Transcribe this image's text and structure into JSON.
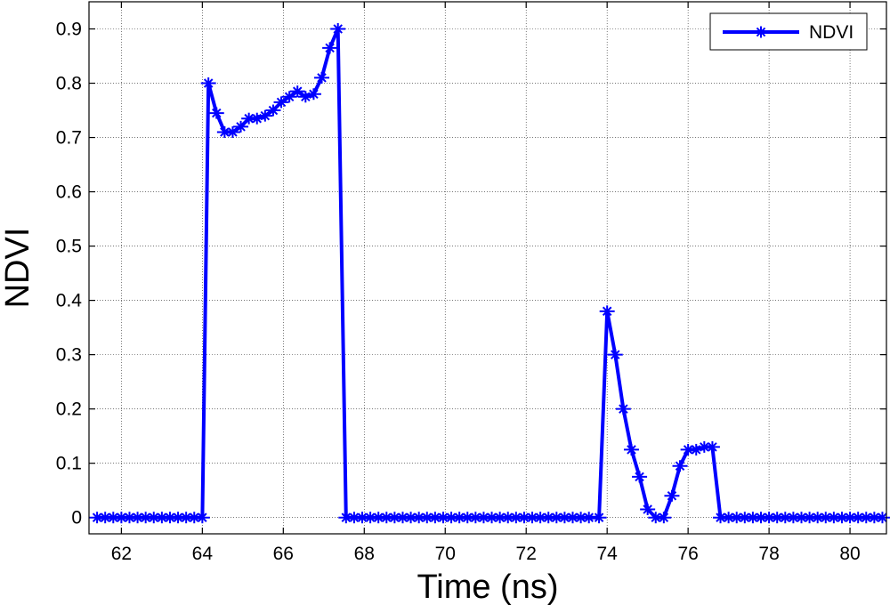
{
  "chart_data": {
    "type": "line",
    "xlabel": "Time (ns)",
    "ylabel": "NDVI",
    "xlim": [
      61.2,
      80.9
    ],
    "ylim": [
      -0.03,
      0.95
    ],
    "xticks": [
      62,
      64,
      66,
      68,
      70,
      72,
      74,
      76,
      78,
      80
    ],
    "xtick_labels": [
      "62",
      "64",
      "66",
      "68",
      "70",
      "72",
      "74",
      "76",
      "78",
      "80"
    ],
    "yticks": [
      0,
      0.1,
      0.2,
      0.3,
      0.4,
      0.5,
      0.6,
      0.7,
      0.8,
      0.9
    ],
    "ytick_labels": [
      "0",
      "0.1",
      "0.2",
      "0.3",
      "0.4",
      "0.5",
      "0.6",
      "0.7",
      "0.8",
      "0.9"
    ],
    "grid": true,
    "legend_position": "top-right",
    "series": [
      {
        "name": "NDVI",
        "color": "#0000ff",
        "marker": "star",
        "x": [
          61.4,
          61.6,
          61.8,
          62.0,
          62.2,
          62.4,
          62.6,
          62.8,
          63.0,
          63.2,
          63.4,
          63.6,
          63.8,
          64.0,
          64.15,
          64.35,
          64.55,
          64.75,
          64.95,
          65.15,
          65.35,
          65.55,
          65.75,
          65.95,
          66.15,
          66.35,
          66.55,
          66.75,
          66.95,
          67.15,
          67.35,
          67.55,
          67.75,
          67.95,
          68.15,
          68.35,
          68.55,
          68.75,
          68.95,
          69.15,
          69.35,
          69.55,
          69.75,
          69.95,
          70.15,
          70.35,
          70.55,
          70.75,
          70.95,
          71.15,
          71.35,
          71.55,
          71.75,
          71.95,
          72.15,
          72.35,
          72.55,
          72.75,
          72.95,
          73.15,
          73.35,
          73.55,
          73.8,
          74.0,
          74.2,
          74.4,
          74.6,
          74.8,
          75.0,
          75.2,
          75.4,
          75.6,
          75.8,
          76.0,
          76.2,
          76.4,
          76.6,
          76.8,
          77.0,
          77.2,
          77.4,
          77.6,
          77.8,
          78.0,
          78.2,
          78.4,
          78.6,
          78.8,
          79.0,
          79.2,
          79.4,
          79.6,
          79.8,
          80.0,
          80.2,
          80.4,
          80.6,
          80.8
        ],
        "y": [
          0,
          0,
          0,
          0,
          0,
          0,
          0,
          0,
          0,
          0,
          0,
          0,
          0,
          0,
          0.8,
          0.745,
          0.71,
          0.71,
          0.72,
          0.735,
          0.735,
          0.74,
          0.75,
          0.765,
          0.775,
          0.785,
          0.775,
          0.78,
          0.81,
          0.865,
          0.9,
          0,
          0,
          0,
          0,
          0,
          0,
          0,
          0,
          0,
          0,
          0,
          0,
          0,
          0,
          0,
          0,
          0,
          0,
          0,
          0,
          0,
          0,
          0,
          0,
          0,
          0,
          0,
          0,
          0,
          0,
          0,
          0,
          0.38,
          0.3,
          0.2,
          0.125,
          0.075,
          0.015,
          0,
          0,
          0.04,
          0.095,
          0.125,
          0.125,
          0.13,
          0.13,
          0,
          0,
          0,
          0,
          0,
          0,
          0,
          0,
          0,
          0,
          0,
          0,
          0,
          0,
          0,
          0,
          0,
          0,
          0,
          0,
          0
        ]
      }
    ]
  }
}
